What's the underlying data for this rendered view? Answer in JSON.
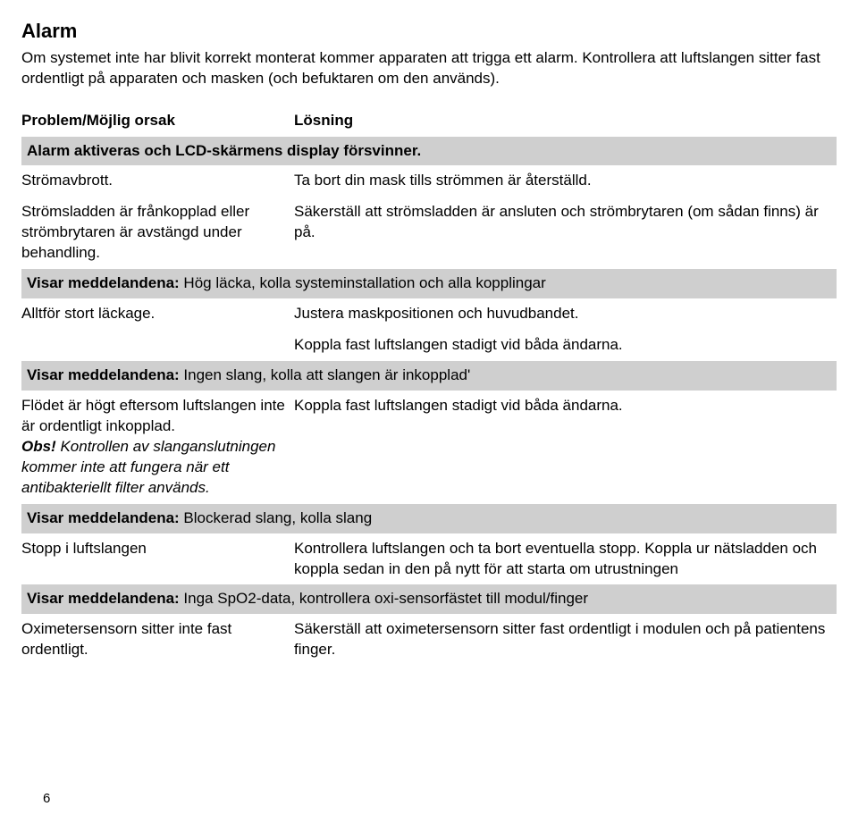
{
  "title": "Alarm",
  "intro": "Om systemet inte har blivit korrekt monterat kommer apparaten att trigga ett alarm. Kontrollera att luftslangen sitter fast ordentligt på apparaten och masken (och befuktaren om den används).",
  "columns": {
    "left": "Problem/Möjlig orsak",
    "right": "Lösning"
  },
  "sections": [
    {
      "header_plain": "Alarm aktiveras och LCD-skärmens display försvinner.",
      "header_label": "",
      "rows": [
        {
          "problem": "Strömavbrott.",
          "solution": "Ta bort din mask tills strömmen är återställd."
        },
        {
          "problem": "Strömsladden är frånkopplad eller strömbrytaren är avstängd under behandling.",
          "solution": "Säkerställ att strömsladden är ansluten och strömbrytaren (om sådan finns) är på."
        }
      ]
    },
    {
      "header_label": "Visar meddelandena: ",
      "header_rest": "Hög läcka, kolla systeminstallation och alla kopplingar",
      "rows": [
        {
          "problem": "Alltför stort läckage.",
          "solution": "Justera maskpositionen och huvudbandet."
        },
        {
          "problem": "",
          "solution": "Koppla fast luftslangen stadigt vid båda ändarna."
        }
      ]
    },
    {
      "header_label": "Visar meddelandena: ",
      "header_rest": "Ingen slang, kolla att slangen är inkopplad'",
      "rows": [
        {
          "problem_plain": "Flödet är högt eftersom luftslangen inte är ordentligt inkopplad.",
          "obs_label": "Obs!",
          "obs_rest": " Kontrollen av slanganslutningen kommer inte att fungera när ett antibakteriellt filter används.",
          "solution": "Koppla fast luftslangen stadigt vid båda ändarna."
        }
      ]
    },
    {
      "header_label": "Visar meddelandena: ",
      "header_rest": "Blockerad slang, kolla slang",
      "rows": [
        {
          "problem": "Stopp i luftslangen",
          "solution": "Kontrollera luftslangen och ta bort eventuella stopp. Koppla ur nätsladden och koppla sedan in den på nytt för att starta om utrustningen"
        }
      ]
    },
    {
      "header_label": "Visar meddelandena: ",
      "header_rest": "Inga SpO2-data, kontrollera oxi-sensorfästet till modul/finger",
      "rows": [
        {
          "problem": "Oximetersensorn sitter inte fast ordentligt.",
          "solution": "Säkerställ att oximetersensorn sitter fast ordentligt i modulen och på patientens finger."
        }
      ]
    }
  ],
  "page_number": "6"
}
